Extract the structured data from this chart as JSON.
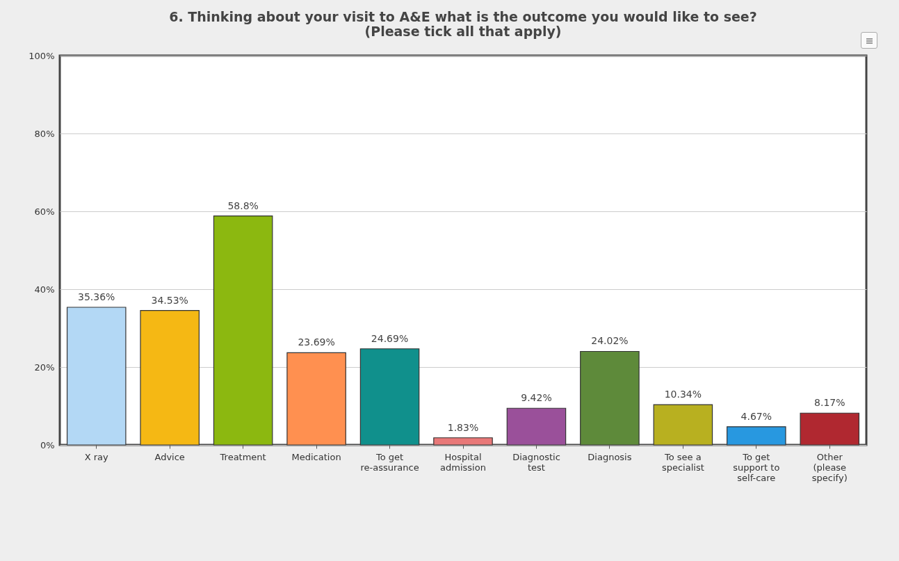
{
  "chart_data": {
    "type": "bar",
    "title": [
      "6. Thinking about your visit to A&E what is the outcome you would like to see?",
      "(Please tick all that apply)"
    ],
    "categories": [
      "X ray",
      "Advice",
      "Treatment",
      "Medication",
      "To get re-assurance",
      "Hospital admission",
      "Diagnostic test",
      "Diagnosis",
      "To see a specialist",
      "To get support to self-care",
      "Other (please specify)"
    ],
    "values": [
      35.36,
      34.53,
      58.8,
      23.69,
      24.69,
      1.83,
      9.42,
      24.02,
      10.34,
      4.67,
      8.17
    ],
    "value_labels": [
      "35.36%",
      "34.53%",
      "58.8%",
      "23.69%",
      "24.69%",
      "1.83%",
      "9.42%",
      "24.02%",
      "10.34%",
      "4.67%",
      "8.17%"
    ],
    "colors": [
      "#b3d8f5",
      "#f5b814",
      "#8cb810",
      "#ff9050",
      "#10908c",
      "#e87878",
      "#9a509a",
      "#5e8a3a",
      "#b8b020",
      "#2898e0",
      "#b02830"
    ],
    "ylim": [
      0,
      100
    ],
    "yticks": [
      {
        "value": 0,
        "label": "0%"
      },
      {
        "value": 20,
        "label": "20%"
      },
      {
        "value": 40,
        "label": "40%"
      },
      {
        "value": 60,
        "label": "60%"
      },
      {
        "value": 80,
        "label": "80%"
      },
      {
        "value": 100,
        "label": "100%"
      }
    ],
    "grid": "y"
  }
}
